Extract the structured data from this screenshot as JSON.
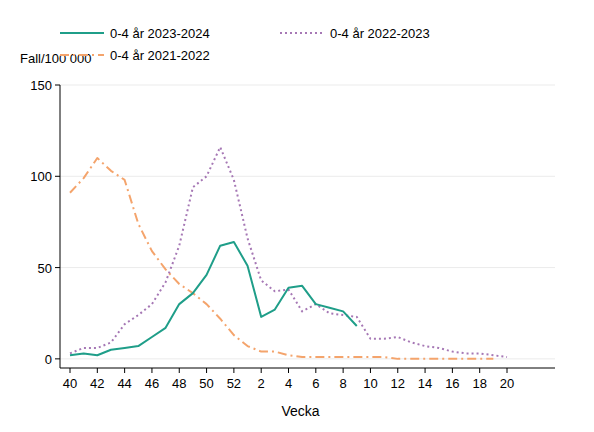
{
  "chart_data": {
    "type": "line",
    "y_label": "Fall/100 000",
    "x_label": "Vecka",
    "categories": [
      "40",
      null,
      "42",
      null,
      "44",
      null,
      "46",
      null,
      "48",
      null,
      "50",
      null,
      "52",
      null,
      "2",
      null,
      "4",
      null,
      "6",
      null,
      "8",
      null,
      "10",
      null,
      "12",
      null,
      "14",
      null,
      "16",
      null,
      "18",
      null,
      "20"
    ],
    "series": [
      {
        "name": "0-4 år 2023-2024",
        "color": "#1f9e89",
        "line_style": "solid",
        "values": [
          2,
          3,
          2,
          5,
          6,
          7,
          12,
          17,
          30,
          36,
          46,
          62,
          64,
          51,
          23,
          27,
          39,
          40,
          30,
          28,
          26,
          18,
          null,
          null,
          null,
          null,
          null,
          null,
          null,
          null,
          null,
          null,
          null
        ]
      },
      {
        "name": "0-4 år 2022-2023",
        "color": "#a678b5",
        "line_style": "dotted",
        "values": [
          3,
          6,
          6,
          9,
          19,
          24,
          30,
          42,
          62,
          94,
          100,
          116,
          98,
          66,
          43,
          37,
          38,
          26,
          30,
          25,
          24,
          23,
          11,
          11,
          12,
          9,
          7,
          6,
          4,
          3,
          3,
          2,
          1
        ]
      },
      {
        "name": "0-4 år 2021-2022",
        "color": "#f4a46c",
        "line_style": "dashdot",
        "values": [
          91,
          99,
          110,
          103,
          98,
          74,
          59,
          49,
          41,
          36,
          30,
          22,
          13,
          7,
          4,
          4,
          2,
          1,
          1,
          1,
          1,
          1,
          1,
          1,
          0,
          0,
          0,
          0,
          0,
          0,
          0,
          0,
          null
        ]
      }
    ],
    "ylim": [
      -5,
      150
    ],
    "yticks": [
      0,
      50,
      100,
      150
    ],
    "grid": true,
    "legend": "top"
  }
}
